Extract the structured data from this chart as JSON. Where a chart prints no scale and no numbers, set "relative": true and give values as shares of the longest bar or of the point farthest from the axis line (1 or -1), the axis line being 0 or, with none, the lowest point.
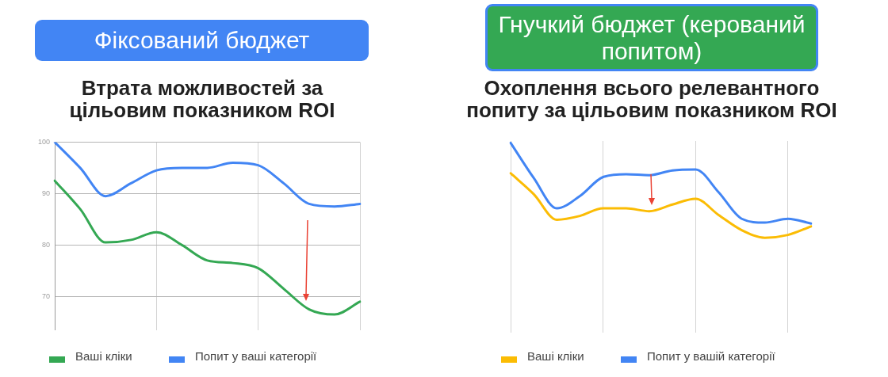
{
  "chart_data": [
    {
      "type": "line",
      "title": "Фіксований бюджет",
      "subtitle": "Втрата можливостей за цільовим показником ROI",
      "categories": [
        null,
        null,
        null,
        null,
        null,
        null,
        null,
        null,
        null,
        null,
        null,
        null,
        null
      ],
      "ylim": [
        63.5,
        100
      ],
      "yticks": [
        70,
        80,
        90,
        100
      ],
      "tick_labels": "y",
      "grid": true,
      "legend": "bottom",
      "marker": "none",
      "series": [
        {
          "name": "Ваші кліки",
          "color": "#34a853",
          "values": [
            92.5,
            87,
            80.5,
            81,
            82.5,
            80,
            77,
            76.5,
            75.5,
            71.5,
            67.5,
            66.5,
            69
          ]
        },
        {
          "name": "Попит у ваші категорії",
          "color": "#4285f4",
          "values": [
            100,
            95,
            89.5,
            92,
            94.5,
            95,
            95,
            96,
            95.5,
            92,
            88,
            87.5,
            88
          ]
        }
      ]
    },
    {
      "type": "line",
      "title": "Гнучкий бюджет (керований попитом)",
      "subtitle": "Охоплення всього релевантного попиту за цільовим показником ROI",
      "relative": true,
      "categories": [
        null,
        null,
        null,
        null,
        null,
        null,
        null,
        null,
        null,
        null,
        null,
        null,
        null,
        null
      ],
      "tick_labels": false,
      "grid": "x",
      "legend": "bottom",
      "marker": "none",
      "series": [
        {
          "name": "Ваші кліки",
          "color": "#fbbc04",
          "values": [
            0.68,
            0.46,
            0.19,
            0.23,
            0.31,
            0.31,
            0.28,
            0.35,
            0.41,
            0.24,
            0.08,
            0,
            0.03,
            0.12
          ]
        },
        {
          "name": "Попит у вашій категорії",
          "color": "#4285f4",
          "values": [
            1,
            0.63,
            0.31,
            0.44,
            0.64,
            0.67,
            0.66,
            0.71,
            0.72,
            0.48,
            0.2,
            0.16,
            0.2,
            0.15
          ]
        }
      ]
    }
  ]
}
